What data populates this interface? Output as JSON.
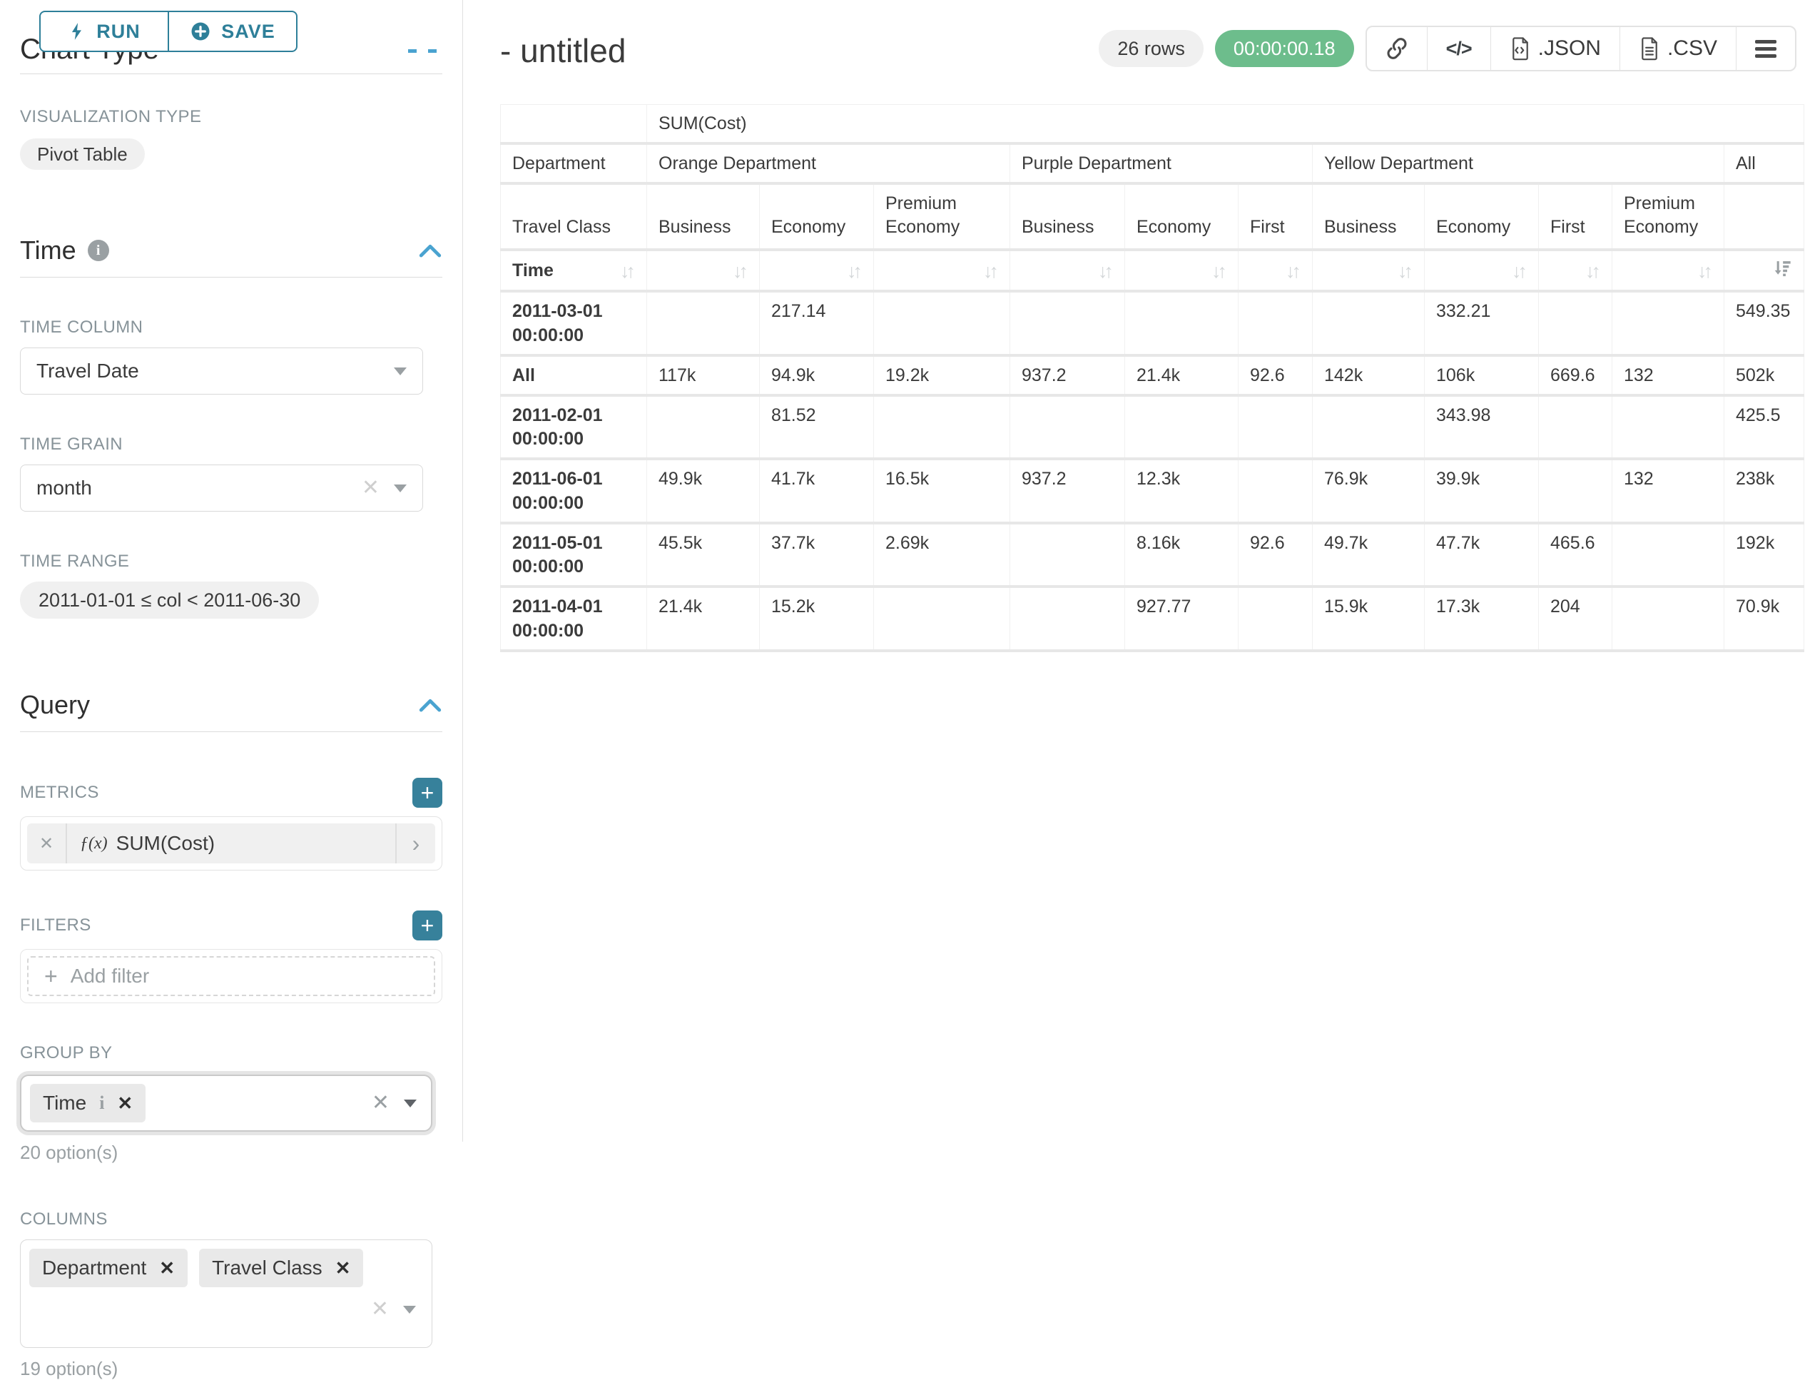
{
  "colors": {
    "accent_teal": "#2e7f99",
    "plus_teal": "#37819b",
    "timer_green": "#6dbd8c",
    "chevron_blue": "#4aa3d0"
  },
  "icons": {
    "sort_inactive": "↓↑",
    "code_glyph": "</>",
    "clear_x": "✕",
    "tag_close": "✕",
    "metric_chevron": "›",
    "info": "i"
  },
  "sidebar": {
    "run_button": "RUN",
    "save_button": "SAVE",
    "chart_type_heading": "Chart Type",
    "visualization": {
      "label": "VISUALIZATION TYPE",
      "value": "Pivot Table"
    },
    "time": {
      "heading": "Time",
      "column_label": "TIME COLUMN",
      "column_value": "Travel Date",
      "grain_label": "TIME GRAIN",
      "grain_value": "month",
      "range_label": "TIME RANGE",
      "range_value": "2011-01-01 ≤ col < 2011-06-30"
    },
    "query": {
      "heading": "Query",
      "metrics_label": "METRICS",
      "metric": {
        "fx": "ƒ(x)",
        "name": "SUM(Cost)"
      },
      "filters_label": "FILTERS",
      "add_filter": "Add filter",
      "group_by_label": "GROUP BY",
      "group_by_tags": [
        "Time"
      ],
      "group_by_options": "20 option(s)",
      "columns_label": "COLUMNS",
      "columns_tags": [
        "Department",
        "Travel Class"
      ],
      "columns_options": "19 option(s)"
    }
  },
  "header": {
    "title": "- untitled",
    "row_count": "26 rows",
    "timer": "00:00:00.18",
    "export_json": ".JSON",
    "export_csv": ".CSV"
  },
  "chart_data": {
    "type": "table",
    "metric_header": "SUM(Cost)",
    "dimension_labels": {
      "columns": "Department",
      "sub": "Travel Class",
      "rows": "Time"
    },
    "column_groups": [
      {
        "label": "Orange Department",
        "classes": [
          "Business",
          "Economy",
          "Premium Economy"
        ]
      },
      {
        "label": "Purple Department",
        "classes": [
          "Business",
          "Economy",
          "First"
        ]
      },
      {
        "label": "Yellow Department",
        "classes": [
          "Business",
          "Economy",
          "First",
          "Premium Economy"
        ]
      },
      {
        "label": "All",
        "classes": []
      }
    ],
    "rows": [
      {
        "label": "2011-03-01 00:00:00",
        "values": [
          "",
          "217.14",
          "",
          "",
          "",
          "",
          "",
          "332.21",
          "",
          "",
          "549.35"
        ]
      },
      {
        "label": "All",
        "values": [
          "117k",
          "94.9k",
          "19.2k",
          "937.2",
          "21.4k",
          "92.6",
          "142k",
          "106k",
          "669.6",
          "132",
          "502k"
        ]
      },
      {
        "label": "2011-02-01 00:00:00",
        "values": [
          "",
          "81.52",
          "",
          "",
          "",
          "",
          "",
          "343.98",
          "",
          "",
          "425.5"
        ]
      },
      {
        "label": "2011-06-01 00:00:00",
        "values": [
          "49.9k",
          "41.7k",
          "16.5k",
          "937.2",
          "12.3k",
          "",
          "76.9k",
          "39.9k",
          "",
          "132",
          "238k"
        ]
      },
      {
        "label": "2011-05-01 00:00:00",
        "values": [
          "45.5k",
          "37.7k",
          "2.69k",
          "",
          "8.16k",
          "92.6",
          "49.7k",
          "47.7k",
          "465.6",
          "",
          "192k"
        ]
      },
      {
        "label": "2011-04-01 00:00:00",
        "values": [
          "21.4k",
          "15.2k",
          "",
          "",
          "927.77",
          "",
          "15.9k",
          "17.3k",
          "204",
          "",
          "70.9k"
        ]
      }
    ],
    "sort": {
      "active_column": "All",
      "direction": "desc"
    }
  }
}
